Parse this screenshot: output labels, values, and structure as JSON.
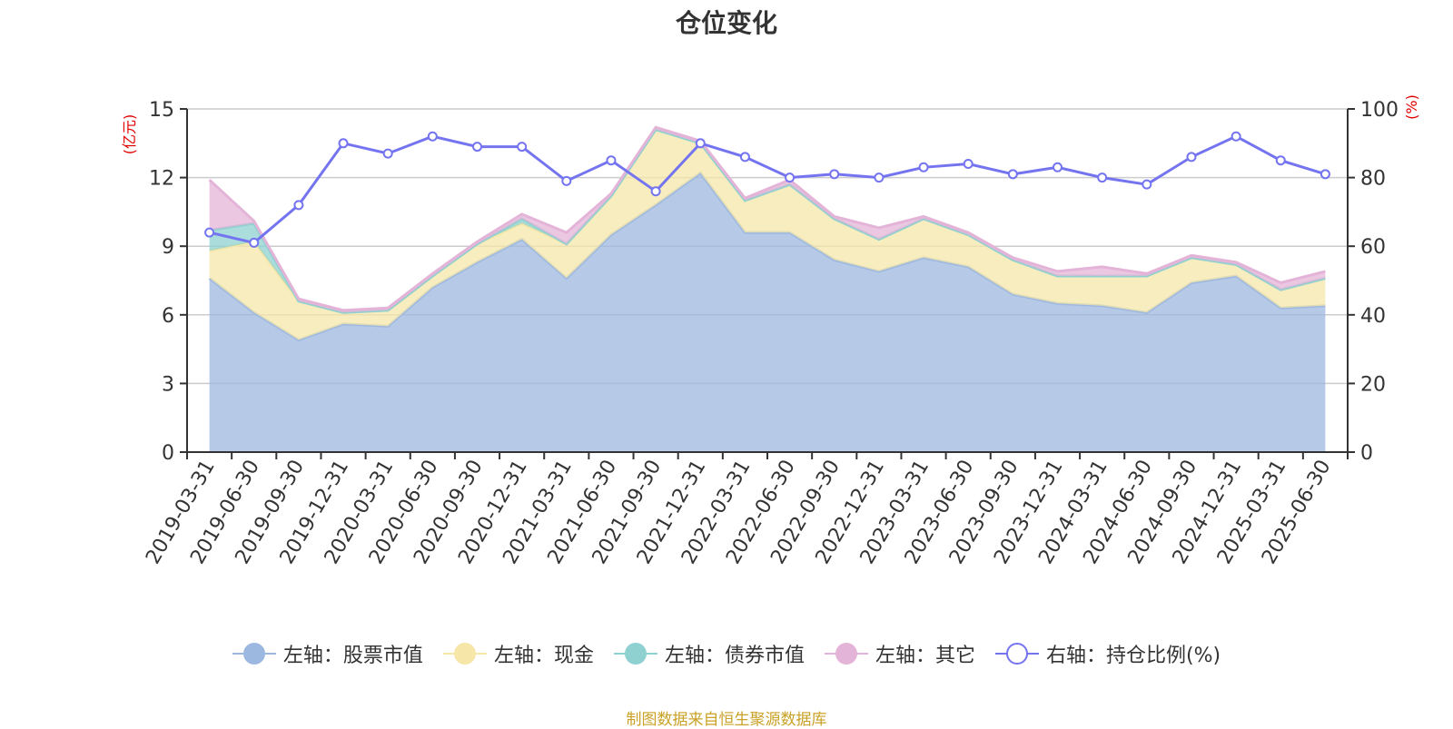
{
  "chart_data": {
    "type": "area",
    "title": "仓位变化",
    "left_axis_label": "(亿元)",
    "right_axis_label": "(%)",
    "left_ylim": [
      0,
      15
    ],
    "left_ticks": [
      "0",
      "3",
      "6",
      "9",
      "12",
      "15"
    ],
    "right_ylim": [
      0,
      100
    ],
    "right_ticks": [
      "0",
      "20",
      "40",
      "60",
      "80",
      "100"
    ],
    "grid": true,
    "legend_position": "bottom",
    "stacked": true,
    "x": [
      "2019-03-31",
      "2019-06-30",
      "2019-09-30",
      "2019-12-31",
      "2020-03-31",
      "2020-06-30",
      "2020-09-30",
      "2020-12-31",
      "2021-03-31",
      "2021-06-30",
      "2021-09-30",
      "2021-12-31",
      "2022-03-31",
      "2022-06-30",
      "2022-09-30",
      "2022-12-31",
      "2023-03-31",
      "2023-06-30",
      "2023-09-30",
      "2023-12-31",
      "2024-03-31",
      "2024-06-30",
      "2024-09-30",
      "2024-12-31",
      "2025-03-31",
      "2025-06-30"
    ],
    "series": [
      {
        "name": "左轴：股票市值",
        "axis": "left",
        "color": "#9db8e0",
        "values": [
          7.6,
          6.1,
          4.9,
          5.6,
          5.5,
          7.2,
          8.3,
          9.3,
          7.6,
          9.5,
          10.8,
          12.2,
          9.6,
          9.6,
          8.4,
          7.9,
          8.5,
          8.1,
          6.9,
          6.5,
          6.4,
          6.1,
          7.4,
          7.7,
          6.3,
          6.4
        ]
      },
      {
        "name": "左轴：现金",
        "axis": "left",
        "color": "#f6e7a8",
        "values": [
          1.2,
          3.1,
          1.7,
          0.5,
          0.7,
          0.5,
          0.8,
          0.7,
          1.5,
          1.7,
          3.3,
          1.3,
          1.4,
          2.1,
          1.8,
          1.4,
          1.7,
          1.4,
          1.5,
          1.2,
          1.3,
          1.6,
          1.1,
          0.5,
          0.8,
          1.2
        ]
      },
      {
        "name": "左轴：债券市值",
        "axis": "left",
        "color": "#8fd1d0",
        "values": [
          0.9,
          0.8,
          0.0,
          0.0,
          0.0,
          0.0,
          0.0,
          0.2,
          0.0,
          0.0,
          0.0,
          0.0,
          0.0,
          0.0,
          0.0,
          0.0,
          0.0,
          0.0,
          0.0,
          0.0,
          0.0,
          0.0,
          0.0,
          0.0,
          0.0,
          0.0
        ]
      },
      {
        "name": "左轴：其它",
        "axis": "left",
        "color": "#e4b4d8",
        "values": [
          2.2,
          0.1,
          0.1,
          0.1,
          0.1,
          0.1,
          0.1,
          0.2,
          0.5,
          0.1,
          0.1,
          0.1,
          0.1,
          0.2,
          0.1,
          0.5,
          0.1,
          0.1,
          0.1,
          0.2,
          0.4,
          0.1,
          0.1,
          0.1,
          0.3,
          0.3
        ]
      },
      {
        "name": "右轴：持仓比例(%)",
        "axis": "right",
        "type": "line",
        "color": "#7474f0",
        "values": [
          64,
          61,
          72,
          90,
          87,
          92,
          89,
          89,
          79,
          85,
          76,
          90,
          86,
          80,
          81,
          80,
          83,
          84,
          81,
          83,
          80,
          78,
          86,
          92,
          85,
          81
        ]
      }
    ]
  },
  "legend": {
    "items": [
      {
        "label": "左轴：股票市值",
        "color": "#9db8e0",
        "kind": "area"
      },
      {
        "label": "左轴：现金",
        "color": "#f6e7a8",
        "kind": "area"
      },
      {
        "label": "左轴：债券市值",
        "color": "#8fd1d0",
        "kind": "area"
      },
      {
        "label": "左轴：其它",
        "color": "#e4b4d8",
        "kind": "area"
      },
      {
        "label": "右轴：持仓比例(%)",
        "color": "#7474f0",
        "kind": "line"
      }
    ]
  },
  "source_note": "制图数据来自恒生聚源数据库"
}
